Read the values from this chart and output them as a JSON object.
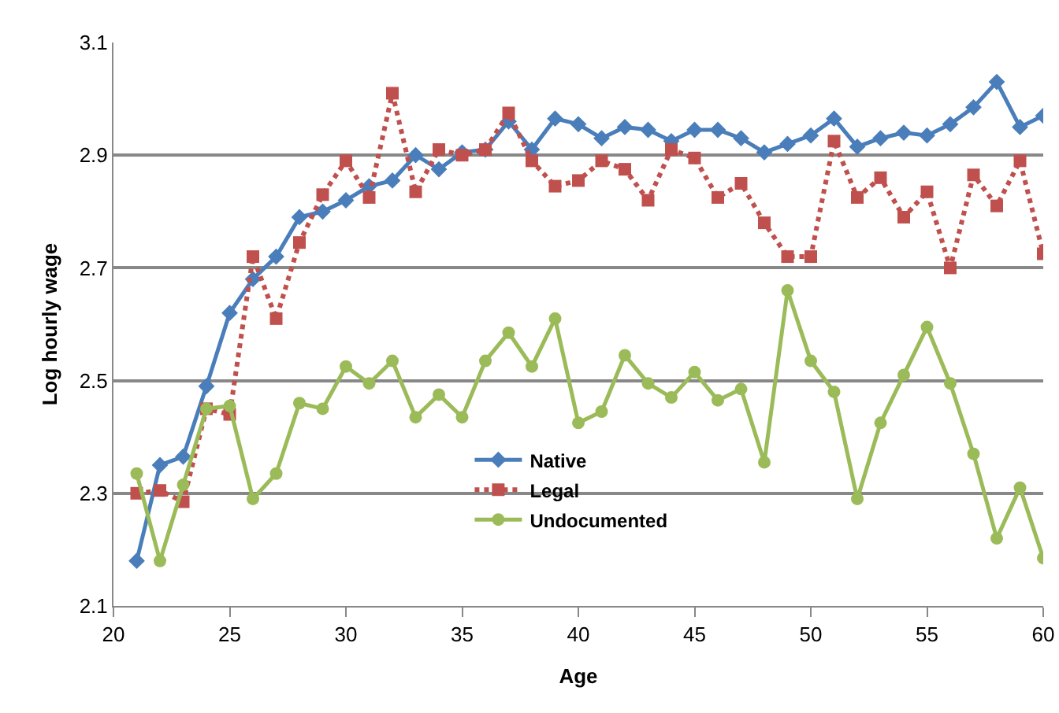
{
  "chart_data": {
    "type": "line",
    "xlabel": "Age",
    "ylabel": "Log hourly wage",
    "x": [
      21,
      22,
      23,
      24,
      25,
      26,
      27,
      28,
      29,
      30,
      31,
      32,
      33,
      34,
      35,
      36,
      37,
      38,
      39,
      40,
      41,
      42,
      43,
      44,
      45,
      46,
      47,
      48,
      49,
      50,
      51,
      52,
      53,
      54,
      55,
      56,
      57,
      58,
      59,
      60
    ],
    "series": [
      {
        "name": "Native",
        "color": "#4a7ebb",
        "marker": "diamond",
        "line_style": "solid",
        "values": [
          2.18,
          2.35,
          2.365,
          2.49,
          2.62,
          2.68,
          2.72,
          2.79,
          2.8,
          2.82,
          2.845,
          2.855,
          2.9,
          2.875,
          2.905,
          2.91,
          2.96,
          2.91,
          2.965,
          2.955,
          2.93,
          2.95,
          2.945,
          2.925,
          2.945,
          2.945,
          2.93,
          2.905,
          2.92,
          2.935,
          2.965,
          2.915,
          2.93,
          2.94,
          2.935,
          2.955,
          2.985,
          3.03,
          2.95,
          2.97
        ]
      },
      {
        "name": "Legal",
        "color": "#c0504d",
        "marker": "square",
        "line_style": "dotted",
        "values": [
          2.3,
          2.305,
          2.285,
          2.45,
          2.44,
          2.72,
          2.61,
          2.745,
          2.83,
          2.89,
          2.825,
          3.01,
          2.835,
          2.91,
          2.9,
          2.91,
          2.975,
          2.89,
          2.845,
          2.855,
          2.89,
          2.875,
          2.82,
          2.91,
          2.895,
          2.825,
          2.85,
          2.78,
          2.72,
          2.72,
          2.925,
          2.825,
          2.86,
          2.79,
          2.835,
          2.7,
          2.865,
          2.81,
          2.89,
          2.725
        ]
      },
      {
        "name": "Undocumented",
        "color": "#9bbb59",
        "marker": "circle",
        "line_style": "solid",
        "values": [
          2.335,
          2.18,
          2.315,
          2.45,
          2.455,
          2.29,
          2.335,
          2.46,
          2.45,
          2.525,
          2.495,
          2.535,
          2.435,
          2.475,
          2.435,
          2.535,
          2.585,
          2.525,
          2.61,
          2.425,
          2.445,
          2.545,
          2.495,
          2.47,
          2.515,
          2.465,
          2.485,
          2.355,
          2.66,
          2.535,
          2.48,
          2.29,
          2.425,
          2.51,
          2.595,
          2.495,
          2.37,
          2.22,
          2.31,
          2.185
        ]
      }
    ],
    "xlim": [
      20,
      60
    ],
    "xticks": [
      20,
      25,
      30,
      35,
      40,
      45,
      50,
      55,
      60
    ],
    "ylim": [
      2.1,
      3.1
    ],
    "yticks": [
      2.1,
      2.3,
      2.5,
      2.7,
      2.9,
      3.1
    ],
    "grid": "y",
    "legend": "bottom"
  }
}
